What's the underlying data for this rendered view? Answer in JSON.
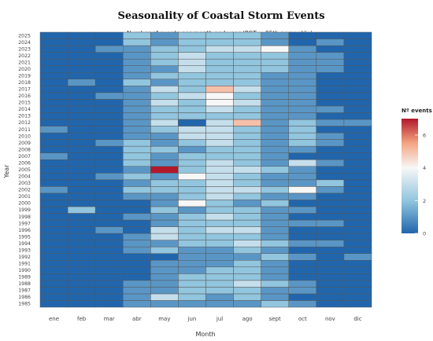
{
  "chart_data": {
    "type": "heatmap",
    "title": "Seasonality of Coastal Storm Events",
    "subtitle": "Number of events per month and year (POT ≥ 95th percentile)",
    "xlabel": "Month",
    "ylabel": "Year",
    "months": [
      "ene",
      "feb",
      "mar",
      "abr",
      "may",
      "jun",
      "jul",
      "ago",
      "sept",
      "oct",
      "nov",
      "dic"
    ],
    "years": [
      "1985",
      "1986",
      "1987",
      "1988",
      "1989",
      "1990",
      "1991",
      "1992",
      "1993",
      "1994",
      "1995",
      "1996",
      "1997",
      "1998",
      "1999",
      "2000",
      "2001",
      "2002",
      "2003",
      "2004",
      "2005",
      "2006",
      "2007",
      "2008",
      "2009",
      "2010",
      "2011",
      "2012",
      "2013",
      "2014",
      "2015",
      "2016",
      "2017",
      "2018",
      "2019",
      "2020",
      "2021",
      "2022",
      "2023",
      "2024",
      "2025"
    ],
    "values": [
      [
        0,
        0,
        0,
        1,
        1,
        1,
        1,
        1,
        2,
        1,
        0,
        0
      ],
      [
        0,
        0,
        0,
        1,
        3,
        2,
        1,
        2,
        1,
        0,
        0,
        0
      ],
      [
        0,
        0,
        0,
        1,
        1,
        2,
        2,
        2,
        1,
        1,
        0,
        0
      ],
      [
        0,
        0,
        0,
        1,
        1,
        2,
        2,
        3,
        2,
        1,
        0,
        0
      ],
      [
        0,
        0,
        0,
        0,
        1,
        2,
        2,
        2,
        1,
        0,
        0,
        0
      ],
      [
        0,
        0,
        0,
        0,
        1,
        1,
        2,
        2,
        1,
        0,
        0,
        0
      ],
      [
        0,
        0,
        0,
        0,
        1,
        1,
        1,
        2,
        1,
        0,
        0,
        0
      ],
      [
        0,
        0,
        0,
        0,
        0,
        1,
        1,
        1,
        2,
        1,
        0,
        1
      ],
      [
        0,
        0,
        0,
        1,
        2,
        1,
        1,
        2,
        1,
        0,
        0,
        0
      ],
      [
        0,
        0,
        0,
        1,
        1,
        2,
        2,
        3,
        2,
        1,
        1,
        0
      ],
      [
        0,
        0,
        0,
        1,
        3,
        2,
        2,
        2,
        1,
        0,
        0,
        0
      ],
      [
        0,
        0,
        1,
        0,
        3,
        2,
        3,
        3,
        1,
        0,
        0,
        0
      ],
      [
        0,
        0,
        0,
        0,
        1,
        2,
        2,
        2,
        1,
        1,
        1,
        0
      ],
      [
        0,
        0,
        0,
        1,
        1,
        2,
        3,
        2,
        1,
        0,
        0,
        0
      ],
      [
        0,
        2,
        0,
        0,
        2,
        1,
        2,
        2,
        1,
        1,
        0,
        0
      ],
      [
        0,
        0,
        0,
        0,
        1,
        4,
        2,
        1,
        2,
        0,
        0,
        0
      ],
      [
        0,
        0,
        0,
        1,
        1,
        2,
        3,
        2,
        1,
        1,
        0,
        0
      ],
      [
        1,
        0,
        0,
        2,
        2,
        2,
        3,
        3,
        2,
        4,
        1,
        0
      ],
      [
        0,
        0,
        0,
        1,
        2,
        2,
        3,
        2,
        1,
        1,
        2,
        0
      ],
      [
        0,
        0,
        1,
        2,
        1,
        4,
        3,
        2,
        1,
        1,
        0,
        0
      ],
      [
        0,
        0,
        0,
        1,
        7,
        2,
        3,
        3,
        2,
        1,
        0,
        0
      ],
      [
        0,
        0,
        0,
        2,
        1,
        2,
        3,
        2,
        1,
        3,
        1,
        0
      ],
      [
        1,
        0,
        0,
        2,
        1,
        2,
        2,
        2,
        1,
        0,
        0,
        0
      ],
      [
        0,
        0,
        0,
        2,
        2,
        1,
        2,
        2,
        1,
        1,
        0,
        0
      ],
      [
        0,
        0,
        1,
        2,
        1,
        2,
        3,
        2,
        1,
        2,
        1,
        0
      ],
      [
        0,
        0,
        0,
        1,
        1,
        3,
        3,
        2,
        1,
        2,
        1,
        0
      ],
      [
        1,
        0,
        0,
        1,
        2,
        3,
        3,
        2,
        1,
        2,
        0,
        0
      ],
      [
        0,
        0,
        0,
        1,
        3,
        0,
        3,
        5,
        1,
        2,
        1,
        1
      ],
      [
        0,
        0,
        0,
        1,
        2,
        2,
        2,
        2,
        1,
        1,
        0,
        0
      ],
      [
        0,
        0,
        0,
        1,
        2,
        2,
        3,
        2,
        1,
        1,
        1,
        0
      ],
      [
        0,
        0,
        0,
        1,
        3,
        2,
        4,
        3,
        1,
        1,
        0,
        0
      ],
      [
        0,
        0,
        1,
        1,
        2,
        3,
        4,
        2,
        1,
        1,
        0,
        0
      ],
      [
        0,
        0,
        0,
        1,
        3,
        2,
        5,
        3,
        1,
        1,
        0,
        0
      ],
      [
        0,
        1,
        0,
        2,
        1,
        2,
        2,
        2,
        1,
        1,
        0,
        0
      ],
      [
        0,
        0,
        0,
        1,
        2,
        2,
        2,
        2,
        1,
        1,
        0,
        0
      ],
      [
        0,
        0,
        0,
        1,
        1,
        3,
        2,
        2,
        2,
        1,
        1,
        0
      ],
      [
        0,
        0,
        0,
        1,
        2,
        3,
        2,
        2,
        2,
        1,
        1,
        0
      ],
      [
        0,
        0,
        0,
        1,
        2,
        3,
        2,
        2,
        2,
        1,
        1,
        0
      ],
      [
        0,
        0,
        1,
        1,
        2,
        2,
        3,
        3,
        4,
        1,
        0,
        0
      ],
      [
        0,
        0,
        0,
        2,
        1,
        2,
        2,
        2,
        1,
        0,
        1,
        0
      ],
      [
        0,
        0,
        0,
        2,
        1,
        2,
        2,
        2,
        1,
        0,
        0,
        0
      ]
    ],
    "colorbar": {
      "title": "Nº events",
      "ticks": [
        0,
        2,
        4,
        6
      ],
      "min": 0,
      "max": 7
    },
    "colors": {
      "low": "#2166ac",
      "midlow": "#92c5de",
      "mid": "#f7f7f7",
      "midhigh": "#f4a582",
      "high": "#b2182b",
      "grid": "#555555"
    }
  }
}
